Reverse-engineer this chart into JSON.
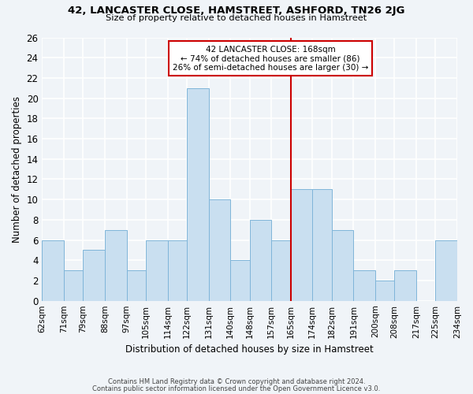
{
  "title": "42, LANCASTER CLOSE, HAMSTREET, ASHFORD, TN26 2JG",
  "subtitle": "Size of property relative to detached houses in Hamstreet",
  "xlabel": "Distribution of detached houses by size in Hamstreet",
  "ylabel": "Number of detached properties",
  "bin_edges": [
    62,
    71,
    79,
    88,
    97,
    105,
    114,
    122,
    131,
    140,
    148,
    157,
    165,
    174,
    182,
    191,
    200,
    208,
    217,
    225,
    234
  ],
  "bin_labels": [
    "62sqm",
    "71sqm",
    "79sqm",
    "88sqm",
    "97sqm",
    "105sqm",
    "114sqm",
    "122sqm",
    "131sqm",
    "140sqm",
    "148sqm",
    "157sqm",
    "165sqm",
    "174sqm",
    "182sqm",
    "191sqm",
    "200sqm",
    "208sqm",
    "217sqm",
    "225sqm",
    "234sqm"
  ],
  "bar_values": [
    6,
    3,
    5,
    7,
    3,
    6,
    6,
    21,
    10,
    4,
    8,
    6,
    11,
    11,
    7,
    3,
    2,
    3,
    0,
    6
  ],
  "bar_color": "#c9dff0",
  "bar_edge_color": "#7fb5d9",
  "background_color": "#f0f4f8",
  "grid_color": "#ffffff",
  "vline_color": "#cc0000",
  "annotation_title": "42 LANCASTER CLOSE: 168sqm",
  "annotation_line1": "← 74% of detached houses are smaller (86)",
  "annotation_line2": "26% of semi-detached houses are larger (30) →",
  "annotation_box_color": "#ffffff",
  "annotation_box_edge": "#cc0000",
  "ylim": [
    0,
    26
  ],
  "yticks": [
    0,
    2,
    4,
    6,
    8,
    10,
    12,
    14,
    16,
    18,
    20,
    22,
    24,
    26
  ],
  "footnote1": "Contains HM Land Registry data © Crown copyright and database right 2024.",
  "footnote2": "Contains public sector information licensed under the Open Government Licence v3.0.",
  "vline_position": 165
}
